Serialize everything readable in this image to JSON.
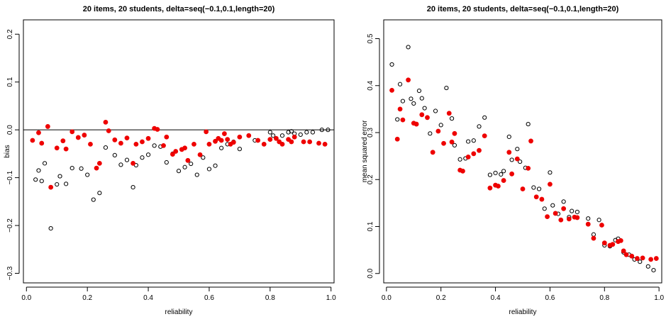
{
  "chart_data": [
    {
      "type": "scatter",
      "title": "20 items, 20 students, delta=seq(−0.1,0.1,length=20)",
      "xlabel": "reliability",
      "ylabel": "bias",
      "xlim": [
        -0.01,
        1.01
      ],
      "ylim": [
        -0.32,
        0.23
      ],
      "xticks": [
        "0.0",
        "0.2",
        "0.4",
        "0.6",
        "0.8",
        "1.0"
      ],
      "yticks": [
        "−0.3",
        "−0.2",
        "−0.1",
        "0.0",
        "0.1",
        "0.2"
      ],
      "reference_line_y": 0,
      "grid": false,
      "series": [
        {
          "marker": "open-circle",
          "color": "#000000",
          "x": [
            0.03,
            0.04,
            0.05,
            0.06,
            0.08,
            0.1,
            0.11,
            0.13,
            0.15,
            0.18,
            0.2,
            0.22,
            0.24,
            0.26,
            0.29,
            0.31,
            0.33,
            0.35,
            0.36,
            0.38,
            0.4,
            0.42,
            0.44,
            0.46,
            0.48,
            0.5,
            0.52,
            0.54,
            0.56,
            0.58,
            0.6,
            0.62,
            0.64,
            0.66,
            0.68,
            0.7,
            0.73,
            0.75,
            0.78,
            0.8,
            0.81,
            0.82,
            0.84,
            0.86,
            0.87,
            0.88,
            0.9,
            0.92,
            0.94,
            0.97,
            0.99
          ],
          "y": [
            -0.104,
            -0.085,
            -0.107,
            -0.07,
            -0.206,
            -0.114,
            -0.097,
            -0.113,
            -0.08,
            -0.081,
            -0.094,
            -0.146,
            -0.132,
            -0.037,
            -0.053,
            -0.073,
            -0.063,
            -0.12,
            -0.074,
            -0.058,
            -0.052,
            -0.033,
            -0.035,
            -0.068,
            -0.05,
            -0.086,
            -0.078,
            -0.071,
            -0.094,
            -0.058,
            -0.082,
            -0.075,
            -0.038,
            -0.03,
            -0.025,
            -0.04,
            -0.012,
            -0.022,
            -0.03,
            -0.005,
            -0.012,
            -0.018,
            -0.012,
            -0.005,
            -0.003,
            -0.008,
            -0.01,
            -0.005,
            -0.005,
            0,
            0
          ]
        },
        {
          "marker": "filled-circle",
          "color": "#ee0000",
          "x": [
            0.02,
            0.04,
            0.05,
            0.07,
            0.08,
            0.1,
            0.12,
            0.13,
            0.15,
            0.17,
            0.19,
            0.21,
            0.23,
            0.24,
            0.26,
            0.27,
            0.29,
            0.31,
            0.33,
            0.35,
            0.36,
            0.38,
            0.4,
            0.42,
            0.43,
            0.45,
            0.46,
            0.48,
            0.49,
            0.51,
            0.52,
            0.53,
            0.55,
            0.57,
            0.59,
            0.6,
            0.62,
            0.63,
            0.64,
            0.65,
            0.66,
            0.67,
            0.68,
            0.7,
            0.73,
            0.76,
            0.78,
            0.8,
            0.82,
            0.83,
            0.84,
            0.86,
            0.87,
            0.88,
            0.91,
            0.93,
            0.96,
            0.98
          ],
          "y": [
            -0.022,
            -0.006,
            -0.028,
            0.007,
            -0.12,
            -0.038,
            -0.023,
            -0.04,
            -0.004,
            -0.016,
            -0.011,
            -0.03,
            -0.08,
            -0.07,
            0.016,
            -0.002,
            -0.021,
            -0.028,
            -0.017,
            -0.07,
            -0.03,
            -0.025,
            -0.018,
            0.003,
            0.001,
            -0.033,
            -0.015,
            -0.051,
            -0.045,
            -0.041,
            -0.038,
            -0.064,
            -0.03,
            -0.052,
            -0.004,
            -0.03,
            -0.024,
            -0.018,
            -0.022,
            -0.008,
            -0.02,
            -0.03,
            -0.026,
            -0.015,
            -0.012,
            -0.022,
            -0.03,
            -0.02,
            -0.018,
            -0.025,
            -0.03,
            -0.02,
            -0.025,
            -0.015,
            -0.025,
            -0.025,
            -0.028,
            -0.03
          ]
        }
      ]
    },
    {
      "type": "scatter",
      "title": "20 items, 20 students, delta=seq(−0.1,0.1,length=20)",
      "xlabel": "reliability",
      "ylabel": "mean squared error",
      "xlim": [
        -0.01,
        1.01
      ],
      "ylim": [
        -0.02,
        0.54
      ],
      "xticks": [
        "0.0",
        "0.2",
        "0.4",
        "0.6",
        "0.8",
        "1.0"
      ],
      "yticks": [
        "0.0",
        "0.1",
        "0.2",
        "0.3",
        "0.4",
        "0.5"
      ],
      "grid": false,
      "series": [
        {
          "marker": "open-circle",
          "color": "#000000",
          "x": [
            0.02,
            0.04,
            0.05,
            0.06,
            0.08,
            0.09,
            0.1,
            0.12,
            0.13,
            0.14,
            0.16,
            0.18,
            0.2,
            0.22,
            0.24,
            0.25,
            0.27,
            0.29,
            0.3,
            0.32,
            0.34,
            0.36,
            0.38,
            0.4,
            0.42,
            0.43,
            0.45,
            0.46,
            0.48,
            0.49,
            0.51,
            0.52,
            0.54,
            0.56,
            0.58,
            0.6,
            0.61,
            0.63,
            0.65,
            0.67,
            0.68,
            0.7,
            0.74,
            0.76,
            0.78,
            0.8,
            0.82,
            0.84,
            0.85,
            0.87,
            0.89,
            0.91,
            0.93,
            0.96,
            0.98
          ],
          "y": [
            0.445,
            0.328,
            0.403,
            0.367,
            0.482,
            0.372,
            0.362,
            0.389,
            0.373,
            0.352,
            0.298,
            0.346,
            0.316,
            0.395,
            0.33,
            0.273,
            0.243,
            0.245,
            0.281,
            0.283,
            0.313,
            0.332,
            0.21,
            0.214,
            0.211,
            0.218,
            0.291,
            0.242,
            0.265,
            0.238,
            0.225,
            0.318,
            0.183,
            0.18,
            0.138,
            0.215,
            0.145,
            0.127,
            0.153,
            0.12,
            0.133,
            0.131,
            0.117,
            0.083,
            0.114,
            0.06,
            0.058,
            0.071,
            0.074,
            0.045,
            0.04,
            0.03,
            0.025,
            0.015,
            0.007
          ]
        },
        {
          "marker": "filled-circle",
          "color": "#ee0000",
          "x": [
            0.02,
            0.04,
            0.05,
            0.06,
            0.08,
            0.1,
            0.11,
            0.13,
            0.15,
            0.17,
            0.19,
            0.21,
            0.23,
            0.24,
            0.25,
            0.27,
            0.28,
            0.3,
            0.32,
            0.34,
            0.36,
            0.38,
            0.4,
            0.41,
            0.43,
            0.45,
            0.46,
            0.48,
            0.5,
            0.52,
            0.53,
            0.55,
            0.57,
            0.59,
            0.6,
            0.62,
            0.64,
            0.65,
            0.67,
            0.69,
            0.7,
            0.74,
            0.76,
            0.79,
            0.8,
            0.82,
            0.83,
            0.85,
            0.86,
            0.87,
            0.88,
            0.9,
            0.92,
            0.94,
            0.97,
            0.99
          ],
          "y": [
            0.39,
            0.286,
            0.35,
            0.327,
            0.412,
            0.32,
            0.318,
            0.338,
            0.332,
            0.258,
            0.303,
            0.277,
            0.341,
            0.28,
            0.298,
            0.22,
            0.218,
            0.248,
            0.255,
            0.262,
            0.293,
            0.182,
            0.188,
            0.186,
            0.198,
            0.258,
            0.212,
            0.244,
            0.18,
            0.224,
            0.282,
            0.163,
            0.158,
            0.121,
            0.19,
            0.128,
            0.114,
            0.138,
            0.116,
            0.12,
            0.119,
            0.105,
            0.075,
            0.103,
            0.065,
            0.06,
            0.062,
            0.068,
            0.07,
            0.048,
            0.04,
            0.037,
            0.032,
            0.033,
            0.03,
            0.032
          ]
        }
      ]
    }
  ]
}
